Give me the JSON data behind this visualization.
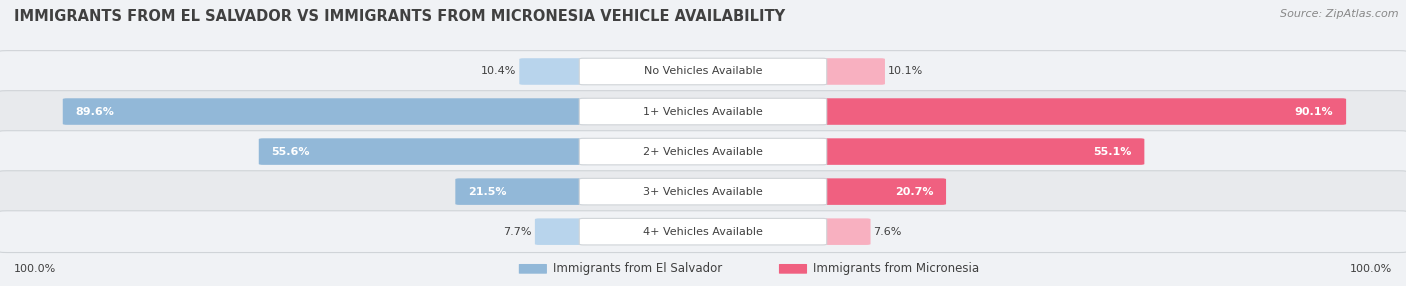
{
  "title": "IMMIGRANTS FROM EL SALVADOR VS IMMIGRANTS FROM MICRONESIA VEHICLE AVAILABILITY",
  "source": "Source: ZipAtlas.com",
  "categories": [
    "No Vehicles Available",
    "1+ Vehicles Available",
    "2+ Vehicles Available",
    "3+ Vehicles Available",
    "4+ Vehicles Available"
  ],
  "salvador_values": [
    10.4,
    89.6,
    55.6,
    21.5,
    7.7
  ],
  "micronesia_values": [
    10.1,
    90.1,
    55.1,
    20.7,
    7.6
  ],
  "salvador_color": "#92b8d8",
  "micronesia_color": "#f06080",
  "salvador_color_light": "#b8d4ec",
  "micronesia_color_light": "#f8b0c0",
  "row_bg_odd": "#f0f2f5",
  "row_bg_even": "#e8eaed",
  "bg_color": "#f0f2f5",
  "legend_salvador": "Immigrants from El Salvador",
  "legend_micronesia": "Immigrants from Micronesia",
  "max_value": 100.0,
  "title_fontsize": 10.5,
  "source_fontsize": 8,
  "bar_label_fontsize": 8,
  "cat_label_fontsize": 8,
  "legend_fontsize": 8.5
}
